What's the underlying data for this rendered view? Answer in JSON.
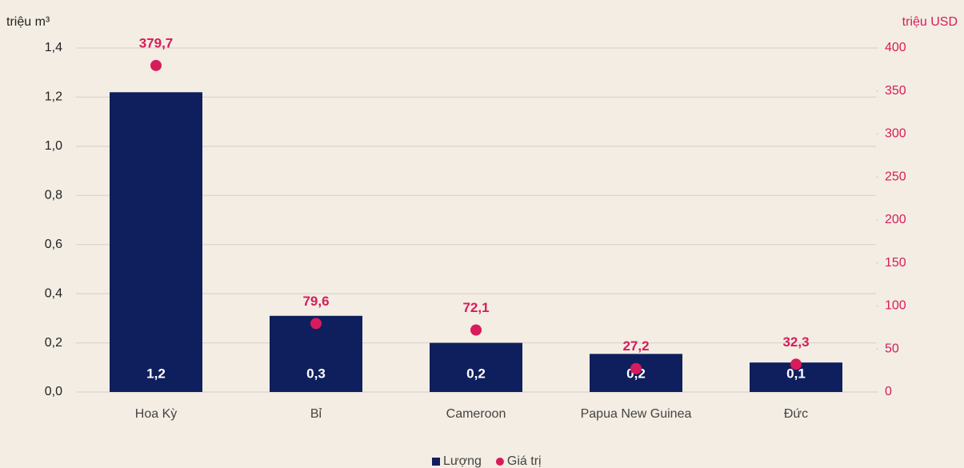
{
  "chart_data": {
    "type": "bar",
    "categories": [
      "Hoa Kỳ",
      "Bỉ",
      "Cameroon",
      "Papua New Guinea",
      "Đức"
    ],
    "ylabel": "triệu m³",
    "y2label": "triệu USD",
    "ylim": [
      0,
      1.4
    ],
    "yticks": [
      {
        "value": 0,
        "label": "0,0"
      },
      {
        "value": 0.2,
        "label": "0,2"
      },
      {
        "value": 0.4,
        "label": "0,4"
      },
      {
        "value": 0.6,
        "label": "0,6"
      },
      {
        "value": 0.8,
        "label": "0,8"
      },
      {
        "value": 1.0,
        "label": "1,0"
      },
      {
        "value": 1.2,
        "label": "1,2"
      },
      {
        "value": 1.4,
        "label": "1,4"
      }
    ],
    "y2lim": [
      0,
      400
    ],
    "y2ticks": [
      0,
      50,
      100,
      150,
      200,
      250,
      300,
      350,
      400
    ],
    "grid": true,
    "legend": "bottom",
    "series": [
      {
        "name": "Lượng",
        "type": "bar",
        "color": "#0f1f5e",
        "values": [
          1.22,
          0.31,
          0.2,
          0.155,
          0.12
        ],
        "value_labels": [
          "1,2",
          "0,3",
          "0,2",
          "0,2",
          "0,1"
        ]
      },
      {
        "name": "Giá trị",
        "type": "scatter",
        "axis": "y2",
        "color": "#d81b5b",
        "values": [
          379.7,
          79.6,
          72.1,
          27.2,
          32.3
        ],
        "value_labels": [
          "379,7",
          "79,6",
          "72,1",
          "27,2",
          "32,3"
        ]
      }
    ]
  }
}
